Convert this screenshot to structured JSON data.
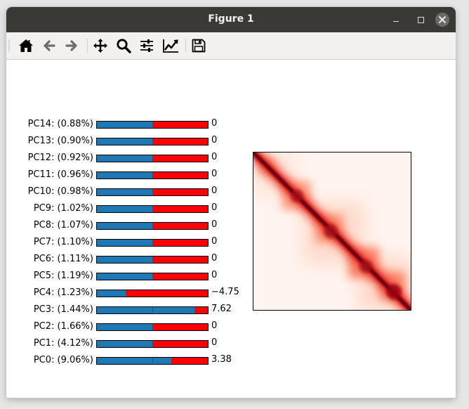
{
  "window": {
    "title": "Figure 1"
  },
  "toolbar": {
    "items": [
      {
        "name": "home-button",
        "icon": "home-icon"
      },
      {
        "name": "back-button",
        "icon": "arrow-left-icon"
      },
      {
        "name": "forward-button",
        "icon": "arrow-right-icon"
      },
      {
        "name": "pan-button",
        "icon": "move-icon"
      },
      {
        "name": "zoom-button",
        "icon": "zoom-icon"
      },
      {
        "name": "configure-subplots-button",
        "icon": "sliders-icon"
      },
      {
        "name": "edit-axes-button",
        "icon": "line-chart-icon"
      },
      {
        "name": "save-button",
        "icon": "floppy-disk-icon"
      }
    ]
  },
  "chart_data": {
    "type": "bar",
    "orientation": "horizontal",
    "colors": {
      "negative": "#1f77b4",
      "positive": "#ff0000"
    },
    "rows": [
      {
        "label": "PC14: (0.88%)",
        "value": 0,
        "value_label": "0"
      },
      {
        "label": "PC13: (0.90%)",
        "value": 0,
        "value_label": "0"
      },
      {
        "label": "PC12: (0.92%)",
        "value": 0,
        "value_label": "0"
      },
      {
        "label": "PC11: (0.96%)",
        "value": 0,
        "value_label": "0"
      },
      {
        "label": "PC10: (0.98%)",
        "value": 0,
        "value_label": "0"
      },
      {
        "label": "PC9: (1.02%)",
        "value": 0,
        "value_label": "0"
      },
      {
        "label": "PC8: (1.07%)",
        "value": 0,
        "value_label": "0"
      },
      {
        "label": "PC7: (1.10%)",
        "value": 0,
        "value_label": "0"
      },
      {
        "label": "PC6: (1.11%)",
        "value": 0,
        "value_label": "0"
      },
      {
        "label": "PC5: (1.19%)",
        "value": 0,
        "value_label": "0"
      },
      {
        "label": "PC4: (1.23%)",
        "value": -4.75,
        "value_label": "−4.75"
      },
      {
        "label": "PC3: (1.44%)",
        "value": 7.62,
        "value_label": "7.62"
      },
      {
        "label": "PC2: (1.66%)",
        "value": 0,
        "value_label": "0"
      },
      {
        "label": "PC1: (4.12%)",
        "value": 0,
        "value_label": "0"
      },
      {
        "label": "PC0: (9.06%)",
        "value": 3.38,
        "value_label": "3.38"
      }
    ],
    "xlim": [
      -10,
      10
    ],
    "heatmap": {
      "type": "heatmap",
      "colormap": "Reds"
    }
  }
}
